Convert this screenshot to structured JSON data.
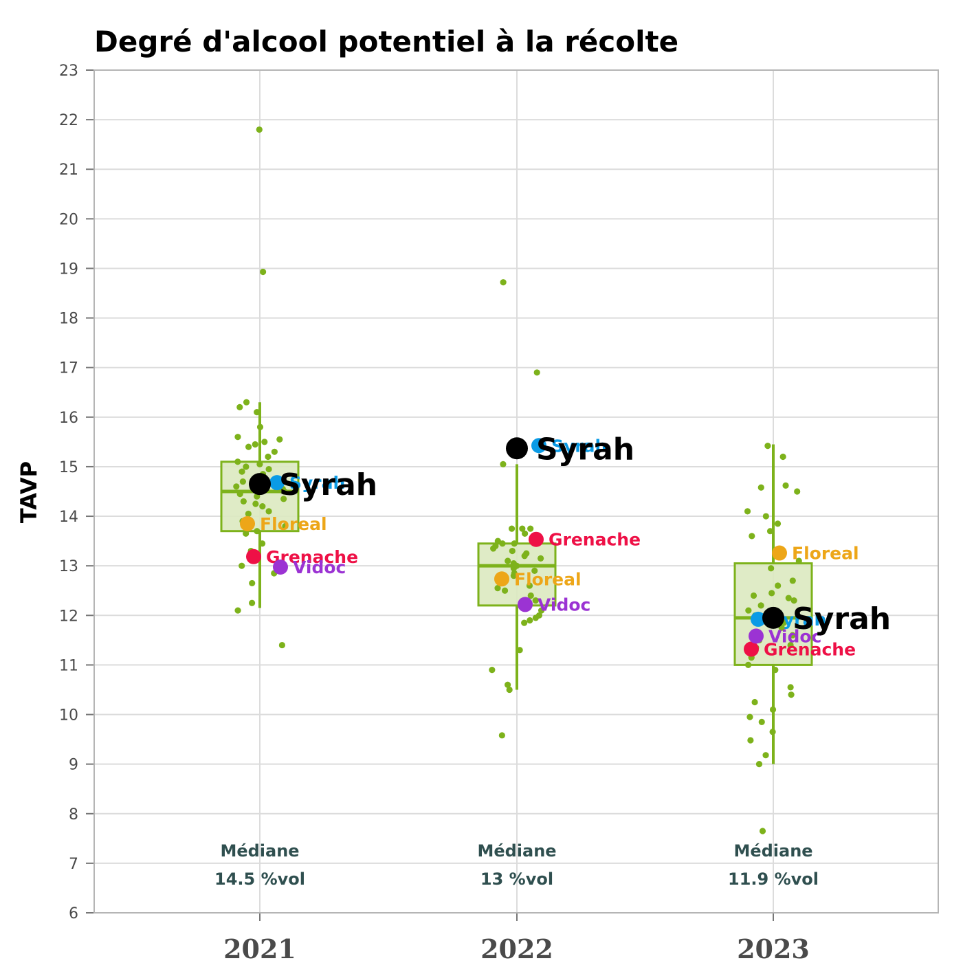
{
  "chart_data": {
    "type": "box",
    "title": "Degré d'alcool potentiel à la récolte",
    "ylabel": "TAVP",
    "xlabel": "",
    "ylim": [
      6,
      23
    ],
    "yticks": [
      6,
      7,
      8,
      9,
      10,
      11,
      12,
      13,
      14,
      15,
      16,
      17,
      18,
      19,
      20,
      21,
      22,
      23
    ],
    "grid": true,
    "categories": [
      "2021",
      "2022",
      "2023"
    ],
    "colors": {
      "box": "#7db21b",
      "box_fill": "#dce9c0",
      "Syrah": "#0a9be6",
      "Floreal": "#eda618",
      "Grenache": "#ee1046",
      "Vidoc": "#9b33d3",
      "highlight": "#000000",
      "median_text": "#2f4f4f"
    },
    "boxes": [
      {
        "category": "2021",
        "whisker_low": 12.15,
        "q1": 13.7,
        "median": 14.5,
        "q3": 15.1,
        "whisker_high": 16.3,
        "median_label": "Médiane",
        "median_value_label": "14.5 %vol"
      },
      {
        "category": "2022",
        "whisker_low": 10.5,
        "q1": 12.2,
        "median": 13.0,
        "q3": 13.45,
        "whisker_high": 15.05,
        "median_label": "Médiane",
        "median_value_label": "13 %vol"
      },
      {
        "category": "2023",
        "whisker_low": 9.0,
        "q1": 11.0,
        "median": 11.95,
        "q3": 13.05,
        "whisker_high": 15.45,
        "median_label": "Médiane",
        "median_value_label": "11.9 %vol"
      }
    ],
    "jitter_points": [
      {
        "category": "2021",
        "values": [
          21.8,
          18.93,
          16.2,
          16.3,
          16.1,
          15.8,
          15.6,
          15.55,
          15.5,
          15.45,
          15.4,
          15.3,
          15.2,
          15.1,
          15.05,
          15.0,
          14.95,
          14.9,
          14.85,
          14.8,
          14.7,
          14.6,
          14.55,
          14.5,
          14.45,
          14.4,
          14.35,
          14.3,
          14.25,
          14.2,
          14.1,
          14.05,
          13.9,
          13.8,
          13.7,
          13.65,
          13.45,
          13.3,
          13.0,
          12.85,
          12.65,
          12.25,
          12.1,
          11.4
        ]
      },
      {
        "category": "2022",
        "values": [
          18.72,
          16.9,
          15.35,
          15.05,
          13.75,
          13.75,
          13.75,
          13.65,
          13.5,
          13.45,
          13.45,
          13.4,
          13.35,
          13.3,
          13.25,
          13.2,
          13.15,
          13.1,
          13.05,
          13.0,
          12.95,
          12.9,
          12.85,
          12.8,
          12.75,
          12.65,
          12.6,
          12.55,
          12.5,
          12.4,
          12.3,
          12.1,
          12.0,
          11.95,
          11.9,
          11.85,
          11.3,
          10.9,
          10.6,
          10.5,
          9.58
        ]
      },
      {
        "category": "2023",
        "values": [
          15.42,
          15.2,
          14.62,
          14.58,
          14.5,
          14.1,
          14.0,
          13.85,
          13.7,
          13.6,
          13.1,
          12.95,
          12.7,
          12.6,
          12.45,
          12.4,
          12.35,
          12.3,
          12.2,
          12.1,
          12.0,
          11.9,
          11.85,
          11.75,
          11.6,
          11.5,
          11.4,
          11.35,
          11.3,
          11.15,
          11.0,
          10.9,
          10.55,
          10.4,
          10.25,
          10.1,
          9.95,
          9.85,
          9.65,
          9.48,
          9.18,
          9.0,
          7.65
        ]
      }
    ],
    "series": [
      {
        "name": "Syrah",
        "values": [
          14.65,
          15.37,
          11.95
        ]
      },
      {
        "name": "Floreal",
        "values": [
          13.85,
          12.68,
          13.3
        ]
      },
      {
        "name": "Grenache",
        "values": [
          13.13,
          13.45,
          11.25
        ]
      },
      {
        "name": "Vidoc",
        "values": [
          13.03,
          12.22,
          11.68
        ]
      }
    ],
    "highlight": {
      "name": "Syrah",
      "values": [
        14.65,
        15.37,
        11.95
      ]
    }
  }
}
